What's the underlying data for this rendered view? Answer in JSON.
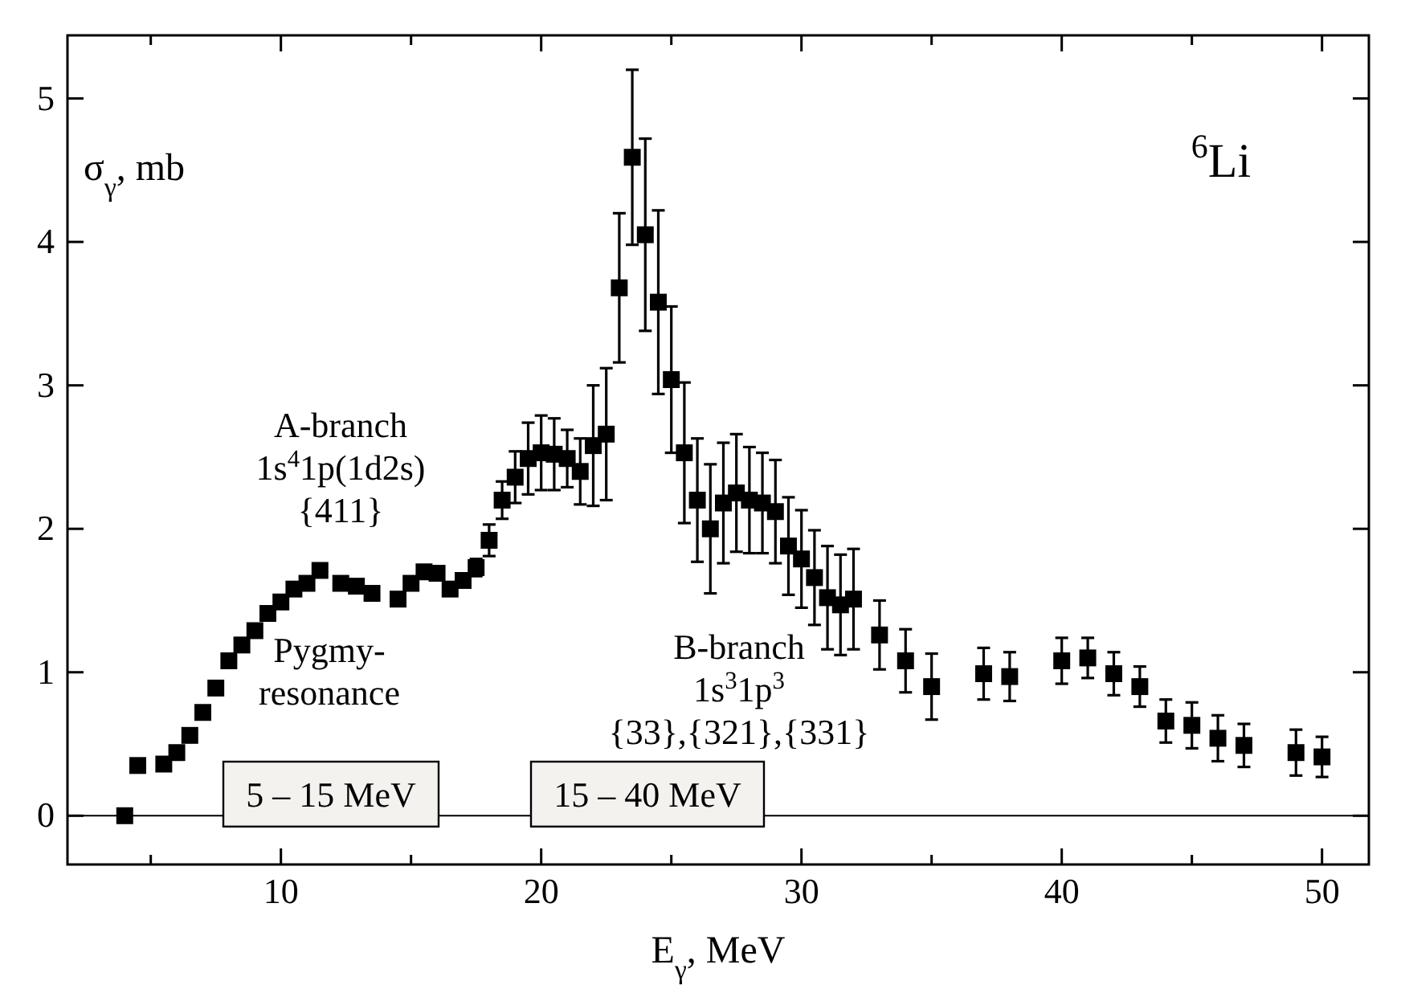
{
  "chart_data": {
    "type": "scatter",
    "xlabel": "E$_{γ}$, MeV",
    "ylabel": "σ$_{γ}$, mb",
    "marker": "square",
    "grid": false,
    "xlim": [
      1.8,
      51.8
    ],
    "ylim": [
      -0.34,
      5.44
    ],
    "xticks": [
      {
        "value": 5,
        "label": null
      },
      10,
      {
        "value": 15,
        "label": null
      },
      20,
      {
        "value": 25,
        "label": null
      },
      30,
      {
        "value": 35,
        "label": null
      },
      40,
      {
        "value": 45,
        "label": null
      },
      50
    ],
    "yticks": [
      0,
      1,
      2,
      3,
      4,
      5
    ],
    "ref_lines": [
      {
        "axis": "y",
        "value": 0,
        "label": null,
        "color": "#000000"
      }
    ],
    "annotations": [
      "A-branch\n1s$^{4}$1p(1d2s)\n{411}",
      "Pygmy-\nresonance",
      "B-branch\n1s$^{3}$1p$^{3}$\n{33},{321},{331}",
      "5 – 15 MeV",
      "15 – 40 MeV",
      "$^{6}$Li"
    ],
    "series": [
      {
        "color": "#000000",
        "x": [
          4,
          4.5,
          5.5,
          6,
          6.5,
          7,
          7.5,
          8,
          8.5,
          9,
          9.5,
          10,
          10.5,
          11,
          11.5,
          12.3,
          12.9,
          13.5,
          14.5,
          15,
          15.5,
          16,
          16.5,
          17,
          17.5,
          18,
          18.5,
          19,
          19.5,
          20,
          20.5,
          21,
          21.5,
          22,
          22.5,
          23,
          23.5,
          24,
          24.5,
          25,
          25.5,
          26,
          26.5,
          27,
          27.5,
          28,
          28.5,
          29,
          29.5,
          30,
          30.5,
          31,
          31.5,
          32,
          33,
          34,
          35,
          37,
          38,
          40,
          41,
          42,
          43,
          44,
          45,
          46,
          47,
          49,
          50
        ],
        "values": [
          0,
          0.35,
          0.36,
          0.44,
          0.56,
          0.72,
          0.89,
          1.08,
          1.19,
          1.29,
          1.41,
          1.49,
          1.58,
          1.62,
          1.71,
          1.62,
          1.6,
          1.55,
          1.51,
          1.62,
          1.7,
          1.69,
          1.58,
          1.64,
          1.73,
          1.92,
          2.2,
          2.36,
          2.49,
          2.53,
          2.52,
          2.49,
          2.4,
          2.58,
          2.66,
          3.68,
          4.59,
          4.05,
          3.58,
          3.04,
          2.53,
          2.2,
          2,
          2.18,
          2.25,
          2.2,
          2.18,
          2.12,
          1.88,
          1.79,
          1.66,
          1.52,
          1.47,
          1.51,
          1.26,
          1.08,
          0.9,
          0.99,
          0.97,
          1.08,
          1.1,
          0.99,
          0.9,
          0.66,
          0.63,
          0.54,
          0.49,
          0.44,
          0.41
        ],
        "errors": [
          null,
          null,
          null,
          null,
          null,
          null,
          null,
          null,
          null,
          null,
          null,
          null,
          null,
          null,
          null,
          null,
          null,
          null,
          null,
          null,
          null,
          null,
          null,
          null,
          0.06,
          0.11,
          0.13,
          0.18,
          0.25,
          0.26,
          0.25,
          0.2,
          0.23,
          0.42,
          0.46,
          0.52,
          0.61,
          0.67,
          0.64,
          0.51,
          0.49,
          0.43,
          0.45,
          0.42,
          0.41,
          0.37,
          0.35,
          0.36,
          0.34,
          0.34,
          0.33,
          0.36,
          0.35,
          0.35,
          0.24,
          0.22,
          0.23,
          0.18,
          0.17,
          0.16,
          0.14,
          0.15,
          0.14,
          0.15,
          0.16,
          0.16,
          0.15,
          0.16,
          0.14
        ]
      }
    ]
  }
}
